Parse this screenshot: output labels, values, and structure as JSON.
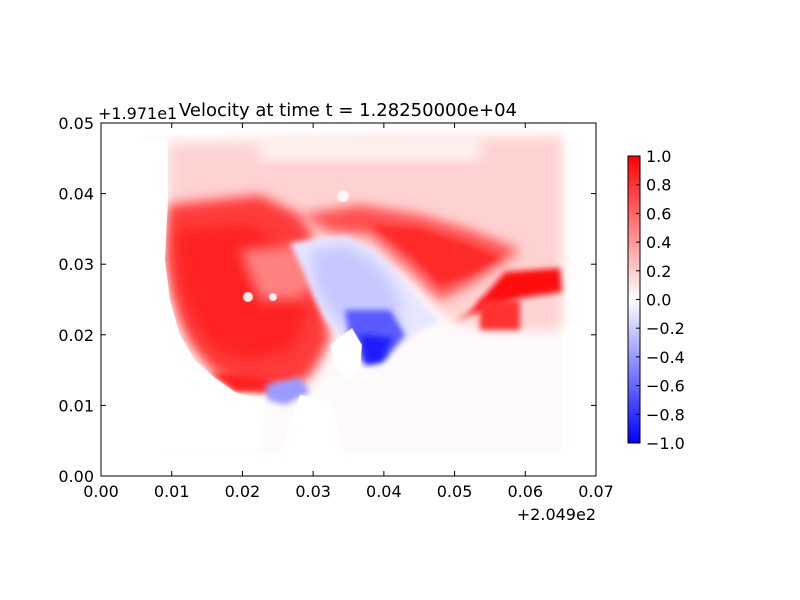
{
  "chart_data": {
    "type": "heatmap",
    "title": "Velocity at time t = 1.28250000e+04",
    "xlabel": "",
    "ylabel": "",
    "x_offset_label": "+2.049e2",
    "y_offset_label": "+1.971e1",
    "xlim": [
      0.0,
      0.07
    ],
    "ylim": [
      0.0,
      0.05
    ],
    "x_ticks": [
      0.0,
      0.01,
      0.02,
      0.03,
      0.04,
      0.05,
      0.06,
      0.07
    ],
    "x_tick_labels": [
      "0.00",
      "0.01",
      "0.02",
      "0.03",
      "0.04",
      "0.05",
      "0.06",
      "0.07"
    ],
    "y_ticks": [
      0.0,
      0.01,
      0.02,
      0.03,
      0.04,
      0.05
    ],
    "y_tick_labels": [
      "0.00",
      "0.01",
      "0.02",
      "0.03",
      "0.04",
      "0.05"
    ],
    "grid": false,
    "colormap": "bwr",
    "colors": {
      "low": "#0000ff",
      "mid": "#ffffff",
      "high": "#ff0000"
    },
    "colorbar": {
      "vmin": -1.0,
      "vmax": 1.0,
      "ticks": [
        1.0,
        0.8,
        0.6,
        0.4,
        0.2,
        0.0,
        -0.2,
        -0.4,
        -0.6,
        -0.8,
        -1.0
      ],
      "tick_labels": [
        "1.0",
        "0.8",
        "0.6",
        "0.4",
        "0.2",
        "0.0",
        "−0.2",
        "−0.4",
        "−0.6",
        "−0.8",
        "−1.0"
      ]
    }
  }
}
